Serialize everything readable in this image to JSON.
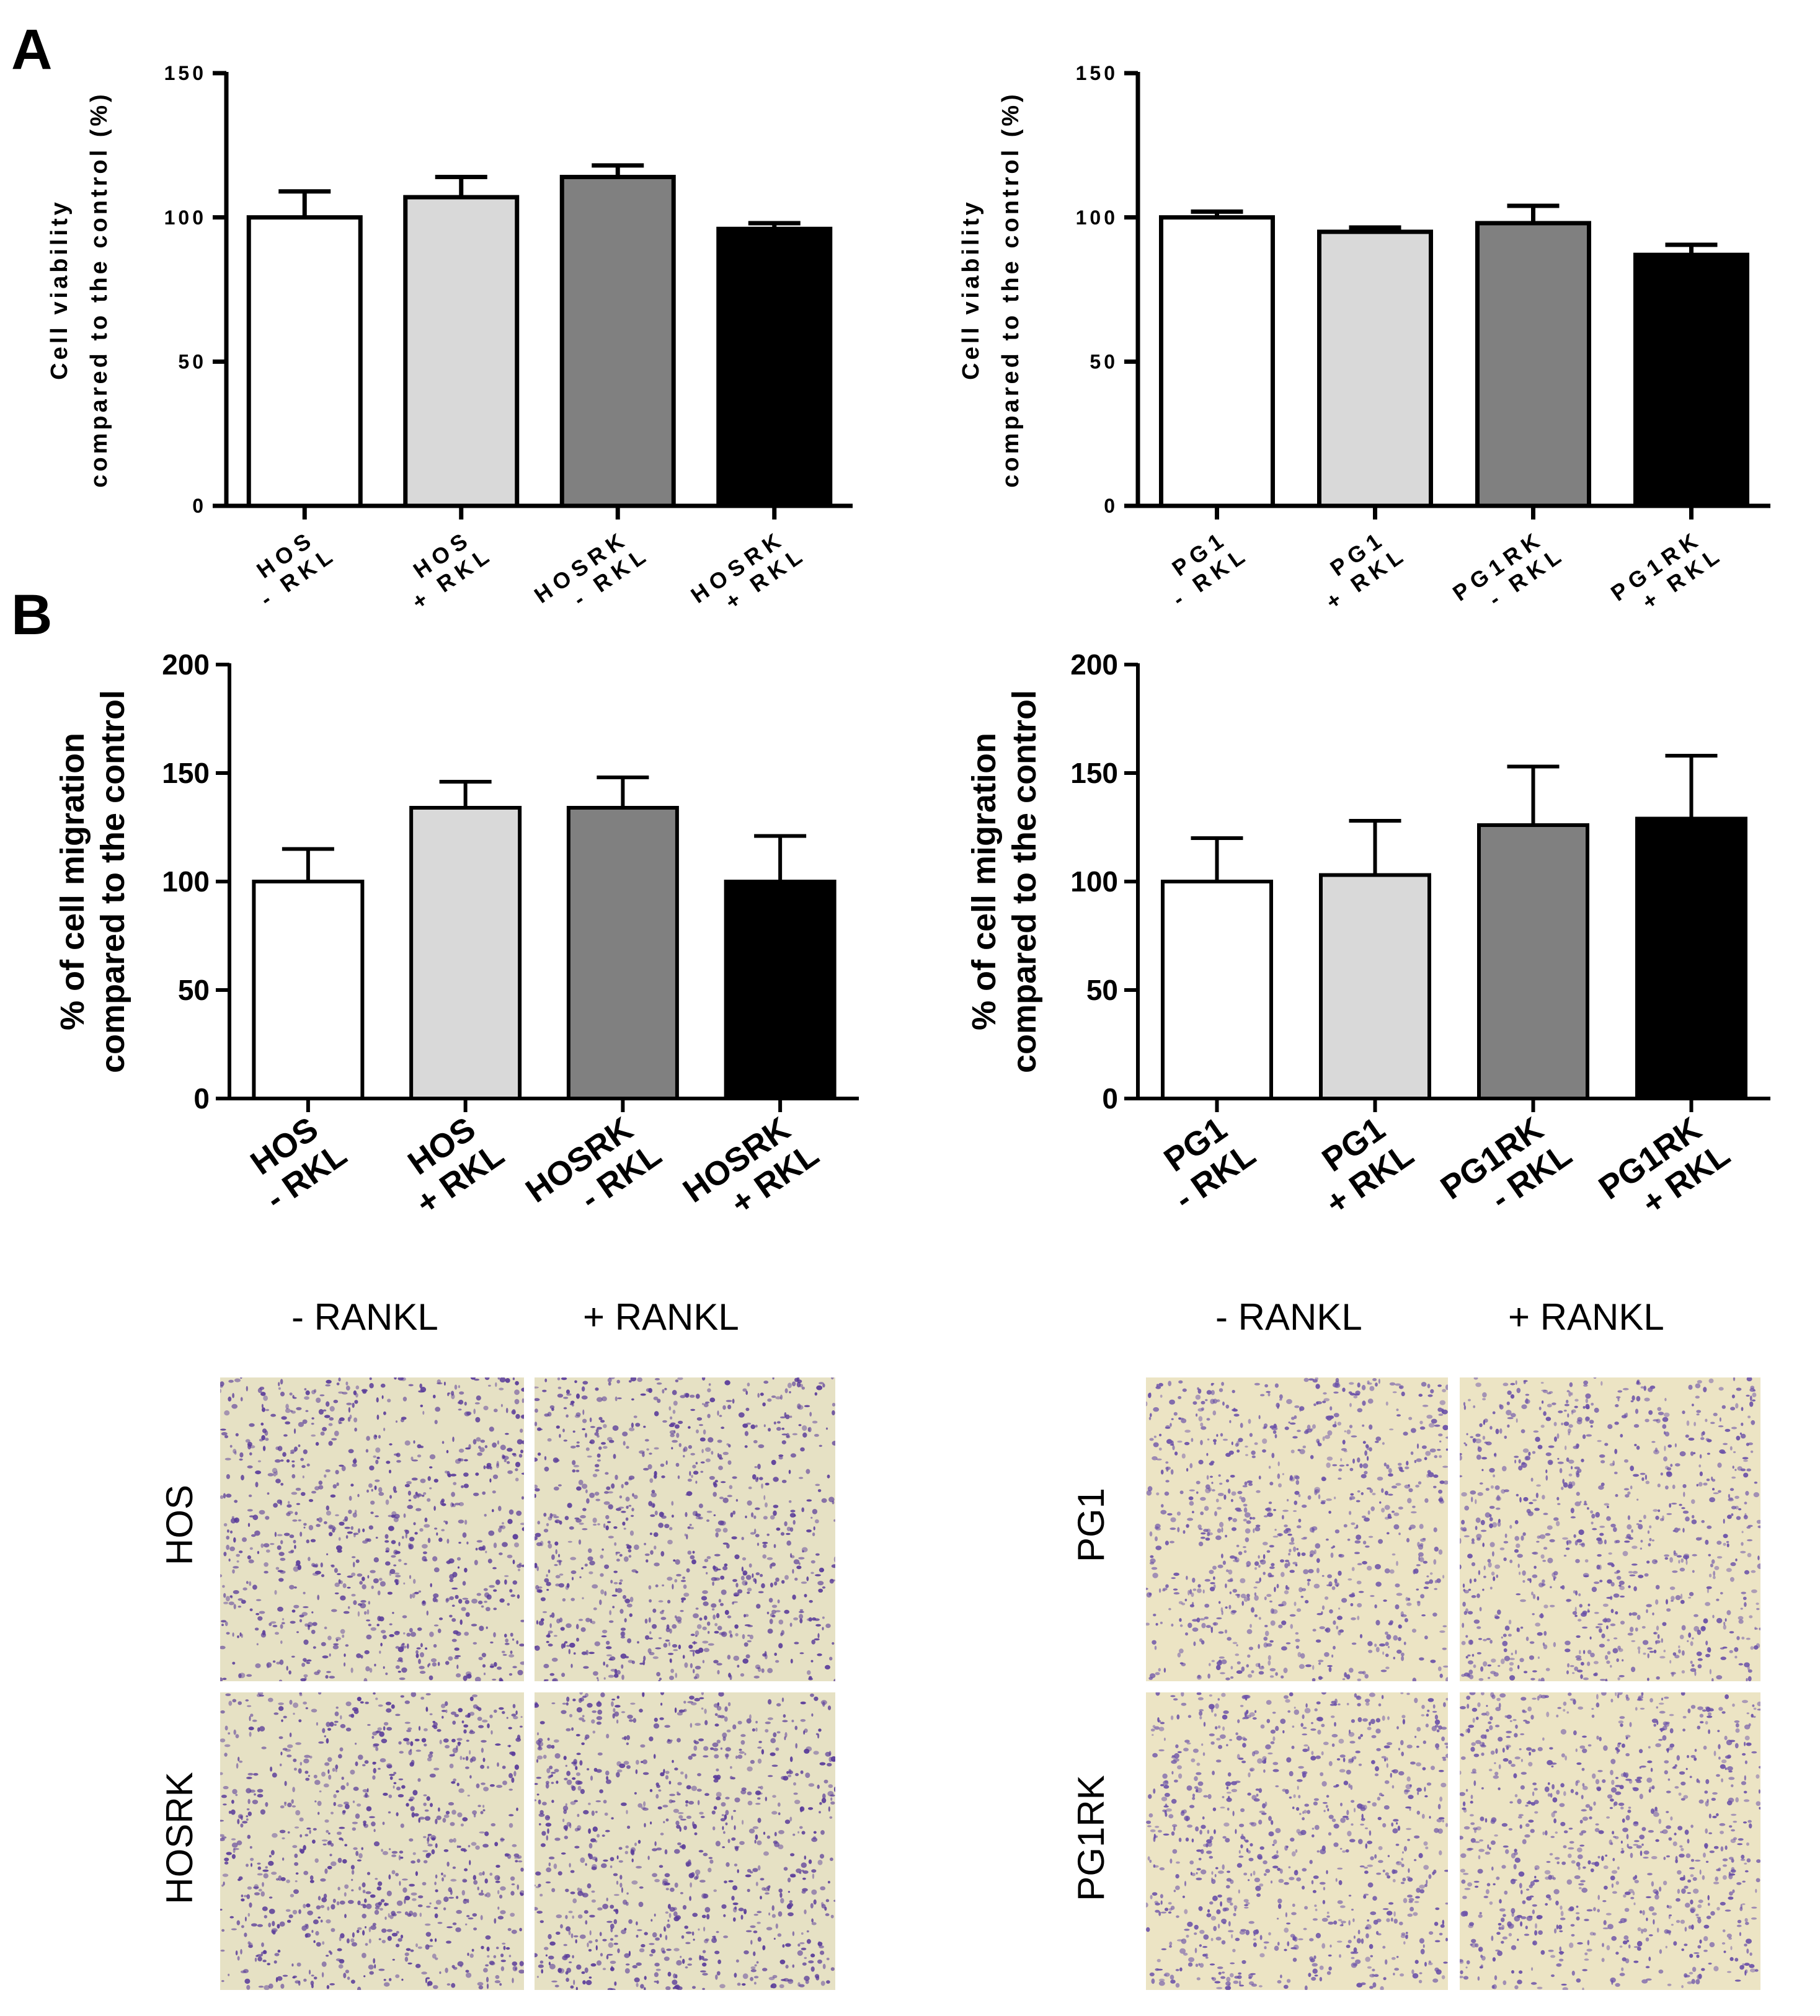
{
  "panels": {
    "a": "A",
    "b": "B"
  },
  "chart_data": [
    {
      "type": "bar",
      "panel": "A",
      "categories": [
        [
          "HOS",
          "- RKL"
        ],
        [
          "HOS",
          "+ RKL"
        ],
        [
          "HOSRK",
          "- RKL"
        ],
        [
          "HOSRK",
          "+ RKL"
        ]
      ],
      "values": [
        100,
        107,
        114,
        96
      ],
      "errors": [
        9,
        7,
        4,
        2
      ],
      "bar_colors": [
        "#ffffff",
        "#d9d9d9",
        "#808080",
        "#000000"
      ],
      "ylabel": [
        "Cell viability",
        "compared to the control (%)"
      ],
      "ylim": [
        0,
        150
      ],
      "yticks": [
        0,
        50,
        100,
        150
      ],
      "grid": false
    },
    {
      "type": "bar",
      "panel": "A",
      "categories": [
        [
          "PG1",
          "- RKL"
        ],
        [
          "PG1",
          "+ RKL"
        ],
        [
          "PG1RK",
          "- RKL"
        ],
        [
          "PG1RK",
          "+ RKL"
        ]
      ],
      "values": [
        100,
        95,
        98,
        87
      ],
      "errors": [
        2,
        1.5,
        6,
        3.5
      ],
      "bar_colors": [
        "#ffffff",
        "#d9d9d9",
        "#808080",
        "#000000"
      ],
      "ylabel": [
        "Cell viability",
        "compared to the control (%)"
      ],
      "ylim": [
        0,
        150
      ],
      "yticks": [
        0,
        50,
        100,
        150
      ],
      "grid": false
    },
    {
      "type": "bar",
      "panel": "B",
      "categories": [
        [
          "HOS",
          "- RKL"
        ],
        [
          "HOS",
          "+ RKL"
        ],
        [
          "HOSRK",
          "- RKL"
        ],
        [
          "HOSRK",
          "+ RKL"
        ]
      ],
      "values": [
        100,
        134,
        134,
        100
      ],
      "errors": [
        15,
        12,
        14,
        21
      ],
      "bar_colors": [
        "#ffffff",
        "#d9d9d9",
        "#808080",
        "#000000"
      ],
      "ylabel": [
        "% of cell migration",
        "compared to the control"
      ],
      "ylim": [
        0,
        200
      ],
      "yticks": [
        0,
        50,
        100,
        150,
        200
      ],
      "grid": false
    },
    {
      "type": "bar",
      "panel": "B",
      "categories": [
        [
          "PG1",
          "- RKL"
        ],
        [
          "PG1",
          "+ RKL"
        ],
        [
          "PG1RK",
          "- RKL"
        ],
        [
          "PG1RK",
          "+ RKL"
        ]
      ],
      "values": [
        100,
        103,
        126,
        129
      ],
      "errors": [
        20,
        25,
        27,
        29
      ],
      "bar_colors": [
        "#ffffff",
        "#d9d9d9",
        "#808080",
        "#000000"
      ],
      "ylabel": [
        "% of cell migration",
        "compared to the control"
      ],
      "ylim": [
        0,
        200
      ],
      "yticks": [
        0,
        50,
        100,
        150,
        200
      ],
      "grid": false
    }
  ],
  "micrographs": [
    {
      "columns": [
        "- RANKL",
        "+ RANKL"
      ],
      "rows": [
        "HOS",
        "HOSRK"
      ],
      "background": "#e6e1c4",
      "stain_color": "#5a3c9a"
    },
    {
      "columns": [
        "- RANKL",
        "+ RANKL"
      ],
      "rows": [
        "PG1",
        "PG1RK"
      ],
      "background": "#ece4c4",
      "stain_color": "#6a50a8"
    }
  ]
}
